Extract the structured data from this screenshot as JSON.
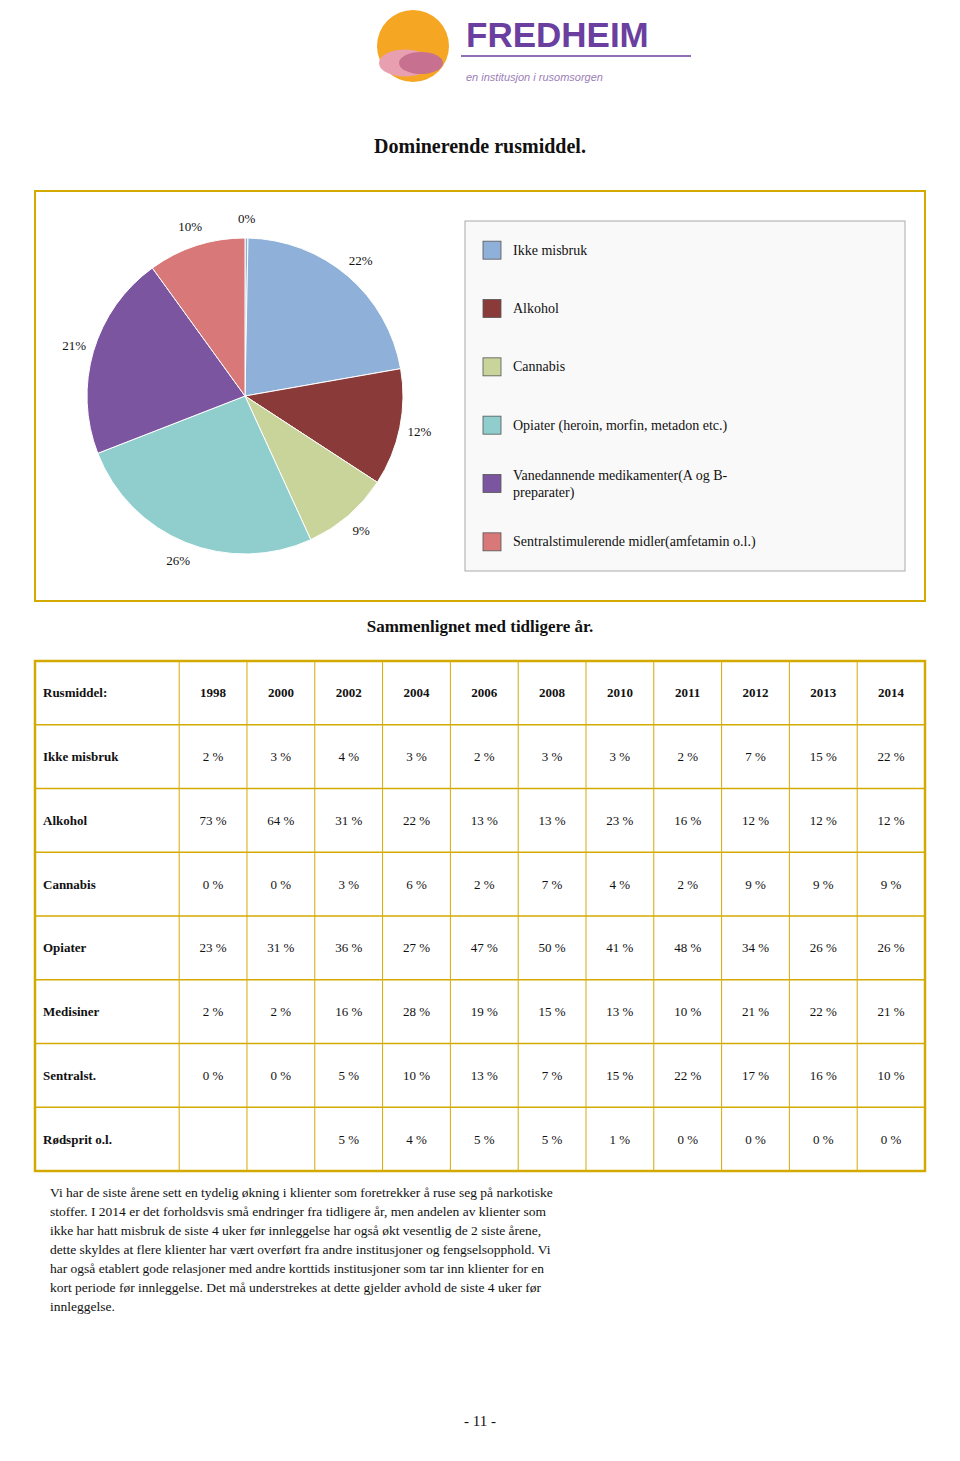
{
  "chart_data": {
    "type": "pie",
    "title": "Dominerende rusmiddel.",
    "categories": [
      null,
      "Ikke misbruk",
      "Alkohol",
      "Cannabis",
      "Opiater (heroin, morfin, metadon etc.)",
      "Vanedannende medikamenter(A og B-\npreparater)",
      "Sentralstimulerende midler(amfetamin o.l.)"
    ],
    "values": [
      0.3,
      22,
      12,
      9,
      26,
      21,
      10
    ],
    "value_labels": [
      "0%",
      "22%",
      "12%",
      "9%",
      "26%",
      "21%",
      "10%"
    ],
    "colors": [
      "#8fb0d8",
      "#8fb0d8",
      "#8b3a3a",
      "#c8d49a",
      "#90cece",
      "#7b55a0",
      "#d87878"
    ],
    "data_labels": true,
    "legend": "right"
  },
  "logo": {
    "name": "FREDHEIM",
    "tagline": "en institusjon i rusomsorgen",
    "name_color": "#6b3fa0",
    "tagline_color": "#9b80b8",
    "emblem_colors": [
      "#f5a623",
      "#e8a0b0",
      "#c87090"
    ]
  },
  "border_color": "#d4aa00",
  "table": {
    "title": "Sammenlignet med tidligere år.",
    "header": [
      "Rusmiddel:",
      "1998",
      "2000",
      "2002",
      "2004",
      "2006",
      "2008",
      "2010",
      "2011",
      "2012",
      "2013",
      "2014"
    ],
    "rows": [
      [
        "Ikke misbruk",
        "2 %",
        "3 %",
        "4 %",
        "3 %",
        "2 %",
        "3 %",
        "3 %",
        "2 %",
        "7 %",
        "15 %",
        "22 %"
      ],
      [
        "Alkohol",
        "73 %",
        "64 %",
        "31 %",
        "22 %",
        "13 %",
        "13 %",
        "23 %",
        "16 %",
        "12 %",
        "12 %",
        "12 %"
      ],
      [
        "Cannabis",
        "0 %",
        "0 %",
        "3 %",
        "6 %",
        "2 %",
        "7 %",
        "4 %",
        "2 %",
        "9 %",
        "9 %",
        "9 %"
      ],
      [
        "Opiater",
        "23 %",
        "31 %",
        "36 %",
        "27 %",
        "47 %",
        "50 %",
        "41 %",
        "48 %",
        "34 %",
        "26 %",
        "26 %"
      ],
      [
        "Medisiner",
        "2 %",
        "2 %",
        "16 %",
        "28 %",
        "19 %",
        "15 %",
        "13 %",
        "10 %",
        "21 %",
        "22 %",
        "21 %"
      ],
      [
        "Sentralst.",
        "0 %",
        "0 %",
        "5 %",
        "10 %",
        "13 %",
        "7 %",
        "15 %",
        "22 %",
        "17 %",
        "16 %",
        "10 %"
      ],
      [
        "Rødsprit o.l.",
        "",
        "",
        "5 %",
        "4 %",
        "5 %",
        "5 %",
        "1 %",
        "0 %",
        "0 %",
        "0 %",
        "0 %"
      ]
    ]
  },
  "body_text": [
    "Vi har de siste årene sett en tydelig økning i klienter som foretrekker å ruse seg på narkotiske",
    "stoffer. I 2014 er det forholdsvis små endringer fra tidligere år, men andelen av klienter som",
    "ikke har hatt misbruk de siste 4 uker før innleggelse har også økt vesentlig de 2 siste årene,",
    "dette skyldes at flere klienter har vært overført fra andre institusjoner og fengselsopphold. Vi",
    "har også etablert gode relasjoner med andre korttids institusjoner som tar inn klienter for en",
    "kort periode før innleggelse. Det må understrekes at dette gjelder avhold de siste 4 uker før",
    "innleggelse."
  ],
  "page_number": "- 11 -"
}
